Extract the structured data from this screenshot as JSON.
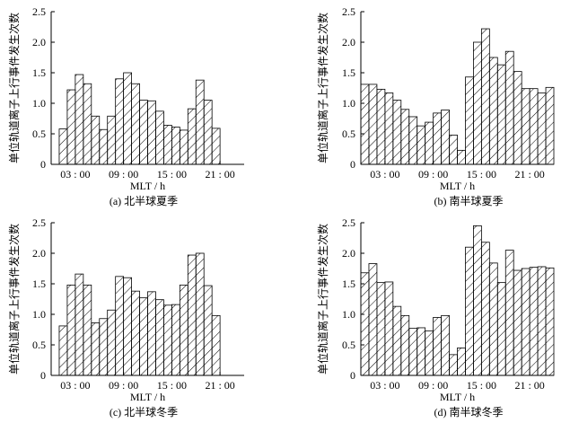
{
  "chart_data": [
    {
      "type": "bar",
      "caption": "(a) 北半球夏季",
      "xlabel": "MLT / h",
      "ylabel": "单位轨道离子上行事件发生次数",
      "ylim": [
        0,
        2.5
      ],
      "yticks": [
        "0",
        "0.5",
        "1.0",
        "1.5",
        "2.0",
        "2.5"
      ],
      "xticks": [
        "03 : 00",
        "09 : 00",
        "15 : 00",
        "21 : 00"
      ],
      "x": [
        0.5,
        1.5,
        2.5,
        3.5,
        4.5,
        5.5,
        6.5,
        7.5,
        8.5,
        9.5,
        10.5,
        11.5,
        12.5,
        13.5,
        14.5,
        15.5,
        16.5,
        17.5,
        18.5,
        19.5,
        20.5,
        21.5,
        22.5,
        23.5
      ],
      "values": [
        0,
        0.58,
        1.22,
        1.47,
        1.32,
        0.79,
        0.57,
        0.79,
        1.4,
        1.5,
        1.32,
        1.05,
        1.04,
        0.87,
        0.64,
        0.61,
        0.56,
        0.91,
        1.38,
        1.05,
        0.59,
        0,
        0,
        0
      ]
    },
    {
      "type": "bar",
      "caption": "(b) 南半球夏季",
      "xlabel": "MLT / h",
      "ylabel": "单位轨道离子上行事件发生次数",
      "ylim": [
        0,
        2.5
      ],
      "yticks": [
        "0",
        "0.5",
        "1.0",
        "1.5",
        "2.0",
        "2.5"
      ],
      "xticks": [
        "03 : 00",
        "09 : 00",
        "15 : 00",
        "21 : 00"
      ],
      "x": [
        0.5,
        1.5,
        2.5,
        3.5,
        4.5,
        5.5,
        6.5,
        7.5,
        8.5,
        9.5,
        10.5,
        11.5,
        12.5,
        13.5,
        14.5,
        15.5,
        16.5,
        17.5,
        18.5,
        19.5,
        20.5,
        21.5,
        22.5,
        23.5
      ],
      "values": [
        1.31,
        1.31,
        1.23,
        1.17,
        1.05,
        0.9,
        0.78,
        0.63,
        0.69,
        0.84,
        0.89,
        0.48,
        0.23,
        1.43,
        2.0,
        2.22,
        1.75,
        1.63,
        1.85,
        1.52,
        1.24,
        1.24,
        1.17,
        1.26
      ]
    },
    {
      "type": "bar",
      "caption": "(c) 北半球冬季",
      "xlabel": "MLT / h",
      "ylabel": "单位轨道离子上行事件发生次数",
      "ylim": [
        0,
        2.5
      ],
      "yticks": [
        "0",
        "0.5",
        "1.0",
        "1.5",
        "2.0",
        "2.5"
      ],
      "xticks": [
        "03 : 00",
        "09 : 00",
        "15 : 00",
        "21 : 00"
      ],
      "x": [
        0.5,
        1.5,
        2.5,
        3.5,
        4.5,
        5.5,
        6.5,
        7.5,
        8.5,
        9.5,
        10.5,
        11.5,
        12.5,
        13.5,
        14.5,
        15.5,
        16.5,
        17.5,
        18.5,
        19.5,
        20.5,
        21.5,
        22.5,
        23.5
      ],
      "values": [
        0,
        0.81,
        1.48,
        1.66,
        1.48,
        0.86,
        0.93,
        1.07,
        1.62,
        1.6,
        1.38,
        1.27,
        1.37,
        1.24,
        1.15,
        1.16,
        1.48,
        1.97,
        2.0,
        1.47,
        0.98,
        0,
        0,
        0
      ]
    },
    {
      "type": "bar",
      "caption": "(d) 南半球冬季",
      "xlabel": "MLT / h",
      "ylabel": "单位轨道离子上行事件发生次数",
      "ylim": [
        0,
        2.5
      ],
      "yticks": [
        "0",
        "0.5",
        "1.0",
        "1.5",
        "2.0",
        "2.5"
      ],
      "xticks": [
        "03 : 00",
        "09 : 00",
        "15 : 00",
        "21 : 00"
      ],
      "x": [
        0.5,
        1.5,
        2.5,
        3.5,
        4.5,
        5.5,
        6.5,
        7.5,
        8.5,
        9.5,
        10.5,
        11.5,
        12.5,
        13.5,
        14.5,
        15.5,
        16.5,
        17.5,
        18.5,
        19.5,
        20.5,
        21.5,
        22.5,
        23.5
      ],
      "values": [
        1.68,
        1.83,
        1.52,
        1.53,
        1.13,
        0.98,
        0.77,
        0.78,
        0.73,
        0.95,
        0.98,
        0.34,
        0.45,
        2.1,
        2.45,
        2.18,
        1.84,
        1.52,
        2.05,
        1.72,
        1.75,
        1.77,
        1.78,
        1.76
      ]
    }
  ],
  "colors": {
    "axis": "#000000",
    "bar_edge": "#000000",
    "hatch": "#000000",
    "bar_fill": "#ffffff"
  }
}
